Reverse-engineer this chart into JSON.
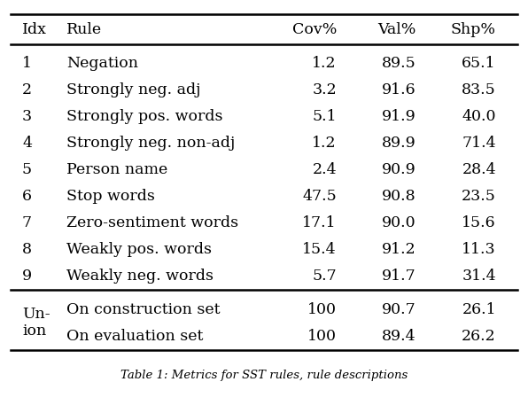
{
  "header": [
    "Idx",
    "Rule",
    "Cov%",
    "Val%",
    "Shp%"
  ],
  "rows": [
    [
      "1",
      "Negation",
      "1.2",
      "89.5",
      "65.1"
    ],
    [
      "2",
      "Strongly neg. adj",
      "3.2",
      "91.6",
      "83.5"
    ],
    [
      "3",
      "Strongly pos. words",
      "5.1",
      "91.9",
      "40.0"
    ],
    [
      "4",
      "Strongly neg. non-adj",
      "1.2",
      "89.9",
      "71.4"
    ],
    [
      "5",
      "Person name",
      "2.4",
      "90.9",
      "28.4"
    ],
    [
      "6",
      "Stop words",
      "47.5",
      "90.8",
      "23.5"
    ],
    [
      "7",
      "Zero-sentiment words",
      "17.1",
      "90.0",
      "15.6"
    ],
    [
      "8",
      "Weakly pos. words",
      "15.4",
      "91.2",
      "11.3"
    ],
    [
      "9",
      "Weakly neg. words",
      "5.7",
      "91.7",
      "31.4"
    ]
  ],
  "union_row1_idx": "Un-\nion",
  "union_row1_rule": "On construction set",
  "union_row1_cov": "100",
  "union_row1_val": "90.7",
  "union_row1_shp": "26.1",
  "union_row2_rule": "On evaluation set",
  "union_row2_cov": "100",
  "union_row2_val": "89.4",
  "union_row2_shp": "26.2",
  "caption": "Table 1: Metrics for SST rules, rule descriptions",
  "col_aligns": [
    "left",
    "left",
    "right",
    "right",
    "right"
  ],
  "background_color": "#ffffff",
  "text_color": "#000000",
  "fontsize": 12.5
}
